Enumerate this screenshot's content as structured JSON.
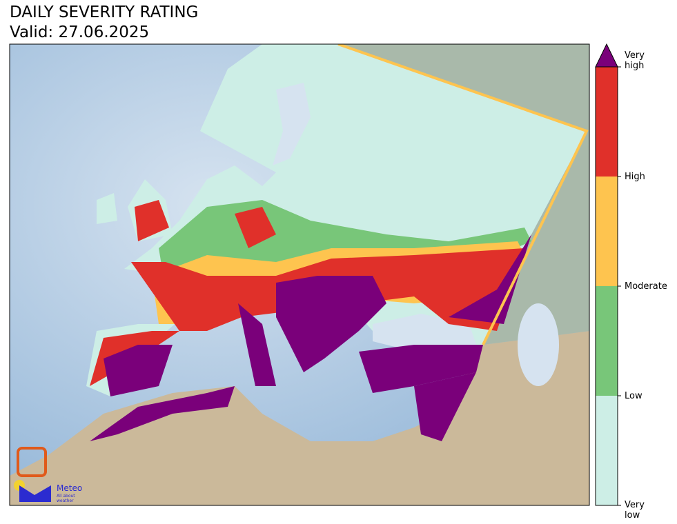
{
  "header": {
    "title": "DAILY SEVERITY RATING",
    "subtitle": "Valid: 27.06.2025"
  },
  "legend": {
    "levels": [
      {
        "label": "Very low",
        "color": "#cdeee6"
      },
      {
        "label": "Low",
        "color": "#78c679"
      },
      {
        "label": "Moderate",
        "color": "#fec44f"
      },
      {
        "label": "High",
        "color": "#e0302a"
      },
      {
        "label": "Very high",
        "color": "#7a007a"
      }
    ]
  },
  "logo": {
    "name": "Meteo",
    "tagline": "All about weather"
  }
}
